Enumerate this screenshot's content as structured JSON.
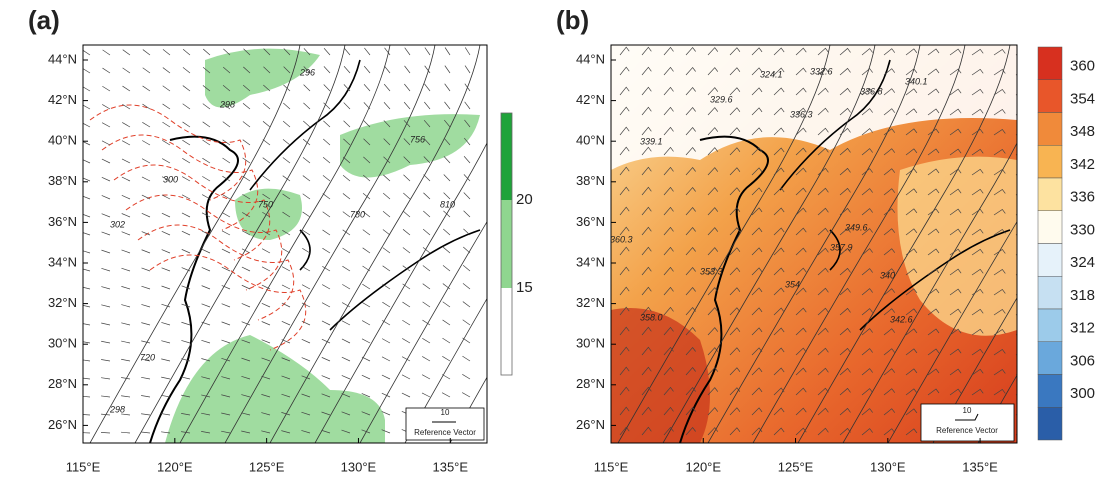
{
  "panels": [
    {
      "label": "(a)",
      "lat_labels": [
        "44°N",
        "42°N",
        "40°N",
        "38°N",
        "36°N",
        "34°N",
        "32°N",
        "30°N",
        "28°N",
        "26°N"
      ],
      "lon_labels": [
        "115°E",
        "120°E",
        "125°E",
        "130°E",
        "135°E"
      ],
      "reference_vector": {
        "magnitude": "10",
        "label": "Reference Vector"
      },
      "colorbar_labels": [
        "20",
        "15"
      ],
      "contour_labels": [
        "298",
        "296",
        "300",
        "302",
        "750",
        "756",
        "780",
        "810",
        "720",
        "298"
      ]
    },
    {
      "label": "(b)",
      "lat_labels": [
        "44°N",
        "42°N",
        "40°N",
        "38°N",
        "36°N",
        "34°N",
        "32°N",
        "30°N",
        "28°N",
        "26°N"
      ],
      "lon_labels": [
        "115°E",
        "120°E",
        "125°E",
        "130°E",
        "135°E"
      ],
      "reference_vector": {
        "magnitude": "10",
        "label": "Reference Vector"
      },
      "colorbar_labels": [
        "360",
        "354",
        "348",
        "342",
        "336",
        "330",
        "324",
        "318",
        "312",
        "306",
        "300"
      ],
      "contour_labels": [
        "324.1",
        "332.6",
        "340.1",
        "329.6",
        "336.8",
        "336.3",
        "339.1",
        "360.3",
        "358.0",
        "353.3",
        "357.9",
        "349.6",
        "354",
        "340",
        "342.6"
      ]
    }
  ]
}
